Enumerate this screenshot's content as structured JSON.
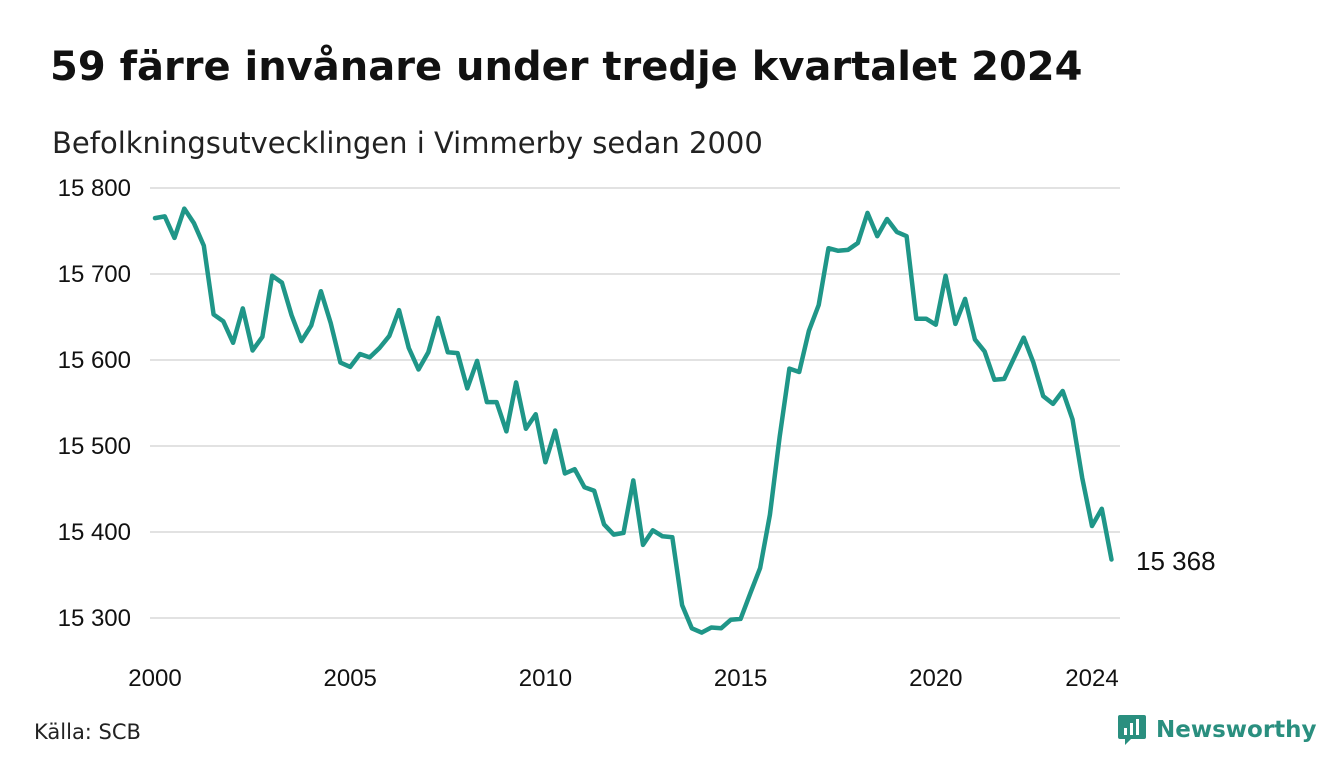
{
  "title": "59 färre invånare under tredje kvartalet 2024",
  "subtitle": "Befolkningsutvecklingen i Vimmerby sedan 2000",
  "source": "Källa: SCB",
  "brand": {
    "name": "Newsworthy",
    "icon": "newsworthy-logo-icon",
    "color": "#2a8f7f"
  },
  "colors": {
    "line": "#1f9688",
    "grid": "#e2e2e2",
    "text": "#111111"
  },
  "chart_data": {
    "type": "line",
    "title": "59 färre invånare under tredje kvartalet 2024",
    "subtitle": "Befolkningsutvecklingen i Vimmerby sedan 2000",
    "xlabel": "",
    "ylabel": "",
    "xlim": [
      2000,
      2024.5
    ],
    "ylim": [
      15280,
      15800
    ],
    "yticks": [
      15300,
      15400,
      15500,
      15600,
      15700,
      15800
    ],
    "ytick_labels": [
      "15 300",
      "15 400",
      "15 500",
      "15 600",
      "15 700",
      "15 800"
    ],
    "xticks": [
      2000,
      2005,
      2010,
      2015,
      2020,
      2024
    ],
    "xtick_labels": [
      "2000",
      "2005",
      "2010",
      "2015",
      "2020",
      "2024"
    ],
    "grid": "horizontal",
    "legend": "none",
    "end_label": "15 368",
    "series": [
      {
        "x": [
          2000.0,
          2000.25,
          2000.5,
          2000.75,
          2001.0,
          2001.25,
          2001.5,
          2001.75,
          2002.0,
          2002.25,
          2002.5,
          2002.75,
          2003.0,
          2003.25,
          2003.5,
          2003.75,
          2004.0,
          2004.25,
          2004.5,
          2004.75,
          2005.0,
          2005.25,
          2005.5,
          2005.75,
          2006.0,
          2006.25,
          2006.5,
          2006.75,
          2007.0,
          2007.25,
          2007.5,
          2007.75,
          2008.0,
          2008.25,
          2008.5,
          2008.75,
          2009.0,
          2009.25,
          2009.5,
          2009.75,
          2010.0,
          2010.25,
          2010.5,
          2010.75,
          2011.0,
          2011.25,
          2011.5,
          2011.75,
          2012.0,
          2012.25,
          2012.5,
          2012.75,
          2013.0,
          2013.25,
          2013.5,
          2013.75,
          2014.0,
          2014.25,
          2014.5,
          2014.75,
          2015.0,
          2015.25,
          2015.5,
          2015.75,
          2016.0,
          2016.25,
          2016.5,
          2016.75,
          2017.0,
          2017.25,
          2017.5,
          2017.75,
          2018.0,
          2018.25,
          2018.5,
          2018.75,
          2019.0,
          2019.25,
          2019.5,
          2019.75,
          2020.0,
          2020.25,
          2020.5,
          2020.75,
          2021.0,
          2021.25,
          2021.5,
          2021.75,
          2022.0,
          2022.25,
          2022.5,
          2022.75,
          2023.0,
          2023.25,
          2023.5,
          2023.75,
          2024.0,
          2024.25,
          2024.5
        ],
        "y": [
          15765,
          15767,
          15742,
          15776,
          15759,
          15733,
          15653,
          15645,
          15620,
          15660,
          15611,
          15627,
          15698,
          15690,
          15652,
          15622,
          15640,
          15680,
          15643,
          15597,
          15592,
          15607,
          15603,
          15614,
          15628,
          15658,
          15614,
          15589,
          15609,
          15649,
          15609,
          15608,
          15567,
          15599,
          15551,
          15551,
          15517,
          15574,
          15520,
          15537,
          15481,
          15518,
          15468,
          15473,
          15452,
          15448,
          15409,
          15397,
          15399,
          15460,
          15385,
          15402,
          15395,
          15394,
          15315,
          15288,
          15283,
          15289,
          15288,
          15298,
          15299,
          15329,
          15358,
          15420,
          15511,
          15590,
          15586,
          15634,
          15664,
          15730,
          15727,
          15728,
          15736,
          15771,
          15744,
          15764,
          15749,
          15744,
          15648,
          15648,
          15641,
          15698,
          15642,
          15671,
          15624,
          15610,
          15577,
          15578,
          15602,
          15626,
          15597,
          15558,
          15549,
          15564,
          15531,
          15463,
          15407,
          15427,
          15368
        ]
      }
    ]
  }
}
